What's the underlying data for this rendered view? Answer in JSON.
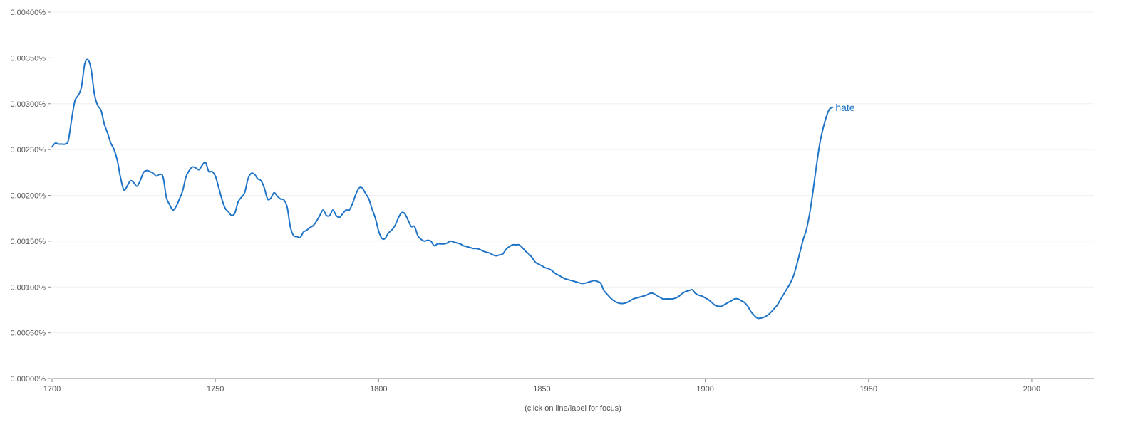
{
  "chart_data": {
    "type": "line",
    "title": "",
    "xlabel": "",
    "ylabel": "",
    "note": "(click on line/label for focus)",
    "xlim": [
      1700,
      2019
    ],
    "ylim": [
      0,
      0.004
    ],
    "grid": true,
    "x_ticks": [
      1700,
      1750,
      1800,
      1850,
      1900,
      1950,
      2000
    ],
    "x_tick_labels": [
      "1700",
      "1750",
      "1800",
      "1850",
      "1900",
      "1950",
      "2000"
    ],
    "y_ticks": [
      0,
      0.0005,
      0.001,
      0.0015,
      0.002,
      0.0025,
      0.003,
      0.0035,
      0.004
    ],
    "y_tick_labels": [
      "0.00000%",
      "0.00050%",
      "0.00100%",
      "0.00150%",
      "0.00200%",
      "0.00250%",
      "0.00300%",
      "0.00350%",
      "0.00400%"
    ],
    "series": [
      {
        "name": "hate",
        "color": "#1f74c7",
        "points": [
          [
            1700,
            0.00253
          ],
          [
            1701,
            0.00257
          ],
          [
            1702,
            0.00256
          ],
          [
            1703,
            0.00256
          ],
          [
            1704,
            0.00256
          ],
          [
            1705,
            0.0026
          ],
          [
            1706,
            0.00283
          ],
          [
            1707,
            0.00303
          ],
          [
            1708,
            0.00309
          ],
          [
            1709,
            0.00318
          ],
          [
            1710,
            0.00343
          ],
          [
            1711,
            0.00348
          ],
          [
            1712,
            0.00337
          ],
          [
            1713,
            0.0031
          ],
          [
            1714,
            0.00298
          ],
          [
            1715,
            0.00293
          ],
          [
            1716,
            0.00278
          ],
          [
            1717,
            0.00268
          ],
          [
            1718,
            0.00257
          ],
          [
            1719,
            0.0025
          ],
          [
            1720,
            0.00238
          ],
          [
            1721,
            0.00219
          ],
          [
            1722,
            0.00206
          ],
          [
            1723,
            0.0021
          ],
          [
            1724,
            0.00216
          ],
          [
            1725,
            0.00214
          ],
          [
            1726,
            0.0021
          ],
          [
            1727,
            0.00216
          ],
          [
            1728,
            0.00225
          ],
          [
            1729,
            0.00227
          ],
          [
            1730,
            0.00226
          ],
          [
            1731,
            0.00224
          ],
          [
            1732,
            0.00221
          ],
          [
            1733,
            0.00223
          ],
          [
            1734,
            0.0022
          ],
          [
            1735,
            0.00198
          ],
          [
            1736,
            0.0019
          ],
          [
            1737,
            0.00184
          ],
          [
            1738,
            0.00188
          ],
          [
            1739,
            0.00196
          ],
          [
            1740,
            0.00205
          ],
          [
            1741,
            0.0022
          ],
          [
            1742,
            0.00227
          ],
          [
            1743,
            0.00231
          ],
          [
            1744,
            0.0023
          ],
          [
            1745,
            0.00228
          ],
          [
            1746,
            0.00233
          ],
          [
            1747,
            0.00236
          ],
          [
            1748,
            0.00226
          ],
          [
            1749,
            0.00226
          ],
          [
            1750,
            0.00221
          ],
          [
            1751,
            0.00209
          ],
          [
            1752,
            0.00196
          ],
          [
            1753,
            0.00186
          ],
          [
            1754,
            0.00182
          ],
          [
            1755,
            0.00178
          ],
          [
            1756,
            0.00181
          ],
          [
            1757,
            0.00193
          ],
          [
            1758,
            0.00198
          ],
          [
            1759,
            0.00203
          ],
          [
            1760,
            0.00218
          ],
          [
            1761,
            0.00224
          ],
          [
            1762,
            0.00223
          ],
          [
            1763,
            0.00218
          ],
          [
            1764,
            0.00216
          ],
          [
            1765,
            0.00208
          ],
          [
            1766,
            0.00196
          ],
          [
            1767,
            0.00197
          ],
          [
            1768,
            0.00203
          ],
          [
            1769,
            0.00199
          ],
          [
            1770,
            0.00196
          ],
          [
            1771,
            0.00195
          ],
          [
            1772,
            0.00187
          ],
          [
            1773,
            0.00165
          ],
          [
            1774,
            0.00156
          ],
          [
            1775,
            0.00155
          ],
          [
            1776,
            0.00154
          ],
          [
            1777,
            0.0016
          ],
          [
            1778,
            0.00162
          ],
          [
            1779,
            0.00165
          ],
          [
            1780,
            0.00167
          ],
          [
            1781,
            0.00172
          ],
          [
            1782,
            0.00178
          ],
          [
            1783,
            0.00184
          ],
          [
            1784,
            0.00178
          ],
          [
            1785,
            0.00178
          ],
          [
            1786,
            0.00184
          ],
          [
            1787,
            0.00178
          ],
          [
            1788,
            0.00176
          ],
          [
            1789,
            0.0018
          ],
          [
            1790,
            0.00184
          ],
          [
            1791,
            0.00184
          ],
          [
            1792,
            0.00191
          ],
          [
            1793,
            0.00201
          ],
          [
            1794,
            0.00208
          ],
          [
            1795,
            0.00208
          ],
          [
            1796,
            0.00202
          ],
          [
            1797,
            0.00196
          ],
          [
            1798,
            0.00185
          ],
          [
            1799,
            0.00175
          ],
          [
            1800,
            0.00161
          ],
          [
            1801,
            0.00153
          ],
          [
            1802,
            0.00153
          ],
          [
            1803,
            0.00159
          ],
          [
            1804,
            0.00162
          ],
          [
            1805,
            0.00167
          ],
          [
            1806,
            0.00175
          ],
          [
            1807,
            0.00181
          ],
          [
            1808,
            0.0018
          ],
          [
            1809,
            0.00173
          ],
          [
            1810,
            0.00166
          ],
          [
            1811,
            0.00166
          ],
          [
            1812,
            0.00156
          ],
          [
            1813,
            0.00152
          ],
          [
            1814,
            0.0015
          ],
          [
            1815,
            0.00151
          ],
          [
            1816,
            0.0015
          ],
          [
            1817,
            0.00145
          ],
          [
            1818,
            0.00147
          ],
          [
            1819,
            0.00147
          ],
          [
            1820,
            0.00147
          ],
          [
            1821,
            0.00148
          ],
          [
            1822,
            0.0015
          ],
          [
            1823,
            0.00149
          ],
          [
            1824,
            0.00148
          ],
          [
            1825,
            0.00147
          ],
          [
            1826,
            0.00145
          ],
          [
            1827,
            0.00144
          ],
          [
            1828,
            0.00143
          ],
          [
            1829,
            0.00142
          ],
          [
            1830,
            0.00142
          ],
          [
            1831,
            0.00141
          ],
          [
            1832,
            0.00139
          ],
          [
            1833,
            0.00138
          ],
          [
            1834,
            0.00137
          ],
          [
            1835,
            0.00135
          ],
          [
            1836,
            0.00134
          ],
          [
            1837,
            0.00135
          ],
          [
            1838,
            0.00136
          ],
          [
            1839,
            0.00141
          ],
          [
            1840,
            0.00144
          ],
          [
            1841,
            0.00146
          ],
          [
            1842,
            0.00146
          ],
          [
            1843,
            0.00146
          ],
          [
            1844,
            0.00143
          ],
          [
            1845,
            0.00139
          ],
          [
            1846,
            0.00136
          ],
          [
            1847,
            0.00132
          ],
          [
            1848,
            0.00127
          ],
          [
            1849,
            0.00125
          ],
          [
            1850,
            0.00123
          ],
          [
            1851,
            0.00121
          ],
          [
            1852,
            0.0012
          ],
          [
            1853,
            0.00118
          ],
          [
            1854,
            0.00115
          ],
          [
            1855,
            0.00113
          ],
          [
            1856,
            0.00111
          ],
          [
            1857,
            0.00109
          ],
          [
            1858,
            0.00108
          ],
          [
            1859,
            0.00107
          ],
          [
            1860,
            0.00106
          ],
          [
            1861,
            0.00105
          ],
          [
            1862,
            0.00104
          ],
          [
            1863,
            0.00104
          ],
          [
            1864,
            0.00105
          ],
          [
            1865,
            0.00106
          ],
          [
            1866,
            0.00107
          ],
          [
            1867,
            0.00106
          ],
          [
            1868,
            0.00104
          ],
          [
            1869,
            0.00096
          ],
          [
            1870,
            0.00092
          ],
          [
            1871,
            0.00088
          ],
          [
            1872,
            0.00085
          ],
          [
            1873,
            0.00083
          ],
          [
            1874,
            0.00082
          ],
          [
            1875,
            0.00082
          ],
          [
            1876,
            0.00083
          ],
          [
            1877,
            0.00085
          ],
          [
            1878,
            0.00087
          ],
          [
            1879,
            0.00088
          ],
          [
            1880,
            0.00089
          ],
          [
            1881,
            0.0009
          ],
          [
            1882,
            0.00091
          ],
          [
            1883,
            0.00093
          ],
          [
            1884,
            0.00093
          ],
          [
            1885,
            0.00091
          ],
          [
            1886,
            0.00089
          ],
          [
            1887,
            0.00087
          ],
          [
            1888,
            0.00087
          ],
          [
            1889,
            0.00087
          ],
          [
            1890,
            0.00087
          ],
          [
            1891,
            0.00088
          ],
          [
            1892,
            0.0009
          ],
          [
            1893,
            0.00093
          ],
          [
            1894,
            0.00095
          ],
          [
            1895,
            0.00096
          ],
          [
            1896,
            0.00097
          ],
          [
            1897,
            0.00093
          ],
          [
            1898,
            0.00091
          ],
          [
            1899,
            0.0009
          ],
          [
            1900,
            0.00088
          ],
          [
            1901,
            0.00086
          ],
          [
            1902,
            0.00083
          ],
          [
            1903,
            0.0008
          ],
          [
            1904,
            0.00079
          ],
          [
            1905,
            0.00079
          ],
          [
            1906,
            0.00081
          ],
          [
            1907,
            0.00083
          ],
          [
            1908,
            0.00085
          ],
          [
            1909,
            0.00087
          ],
          [
            1910,
            0.00087
          ],
          [
            1911,
            0.00085
          ],
          [
            1912,
            0.00083
          ],
          [
            1913,
            0.00079
          ],
          [
            1914,
            0.00073
          ],
          [
            1915,
            0.00069
          ],
          [
            1916,
            0.00066
          ],
          [
            1917,
            0.00066
          ],
          [
            1918,
            0.00067
          ],
          [
            1919,
            0.00069
          ],
          [
            1920,
            0.00072
          ],
          [
            1921,
            0.00076
          ],
          [
            1922,
            0.0008
          ],
          [
            1923,
            0.00086
          ],
          [
            1924,
            0.00092
          ],
          [
            1925,
            0.00098
          ],
          [
            1926,
            0.00104
          ],
          [
            1927,
            0.00112
          ],
          [
            1928,
            0.00124
          ],
          [
            1929,
            0.00138
          ],
          [
            1930,
            0.00152
          ],
          [
            1931,
            0.00163
          ],
          [
            1932,
            0.00181
          ],
          [
            1933,
            0.00205
          ],
          [
            1934,
            0.00231
          ],
          [
            1935,
            0.00255
          ],
          [
            1936,
            0.00272
          ],
          [
            1937,
            0.00285
          ],
          [
            1938,
            0.00294
          ],
          [
            1939,
            0.00296
          ]
        ]
      }
    ]
  }
}
